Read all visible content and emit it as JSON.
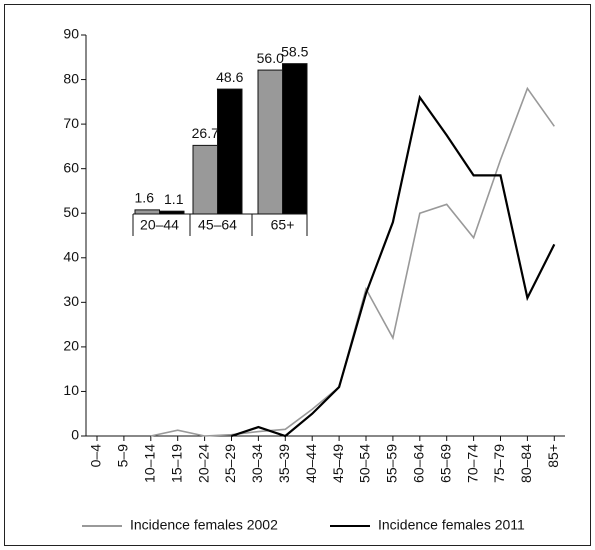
{
  "chart_data": [
    {
      "type": "line",
      "categories": [
        "0–4",
        "5–9",
        "10–14",
        "15–19",
        "20–24",
        "25–29",
        "30–34",
        "35–39",
        "40–44",
        "45–49",
        "50–54",
        "55–59",
        "60–64",
        "65–69",
        "70–74",
        "75–79",
        "80–84",
        "85+"
      ],
      "series": [
        {
          "name": "Incidence females 2002",
          "color": "#999999",
          "values": [
            null,
            null,
            0,
            1.3,
            0,
            0.3,
            1,
            1.5,
            6,
            11,
            33,
            22,
            50,
            52,
            44.5,
            62,
            78,
            69.5
          ]
        },
        {
          "name": "Incidence females 2011",
          "color": "#000000",
          "values": [
            null,
            null,
            null,
            null,
            null,
            0,
            2,
            0,
            5,
            11,
            32,
            48,
            76,
            67.5,
            58.5,
            58.5,
            31,
            43
          ]
        }
      ],
      "ylim": [
        0,
        90
      ],
      "yticks": [
        0,
        10,
        20,
        30,
        40,
        50,
        60,
        70,
        80,
        90
      ],
      "legend": "bottom"
    },
    {
      "type": "bar",
      "categories": [
        "20–44",
        "45–64",
        "65+"
      ],
      "series": [
        {
          "color": "#999999",
          "values": [
            1.6,
            26.7,
            56.0
          ],
          "value_labels": [
            "1.6",
            "26.7",
            "56.0"
          ]
        },
        {
          "color": "#000000",
          "values": [
            1.1,
            48.6,
            58.5
          ],
          "value_labels": [
            "1.1",
            "48.6",
            "58.5"
          ]
        }
      ]
    }
  ]
}
